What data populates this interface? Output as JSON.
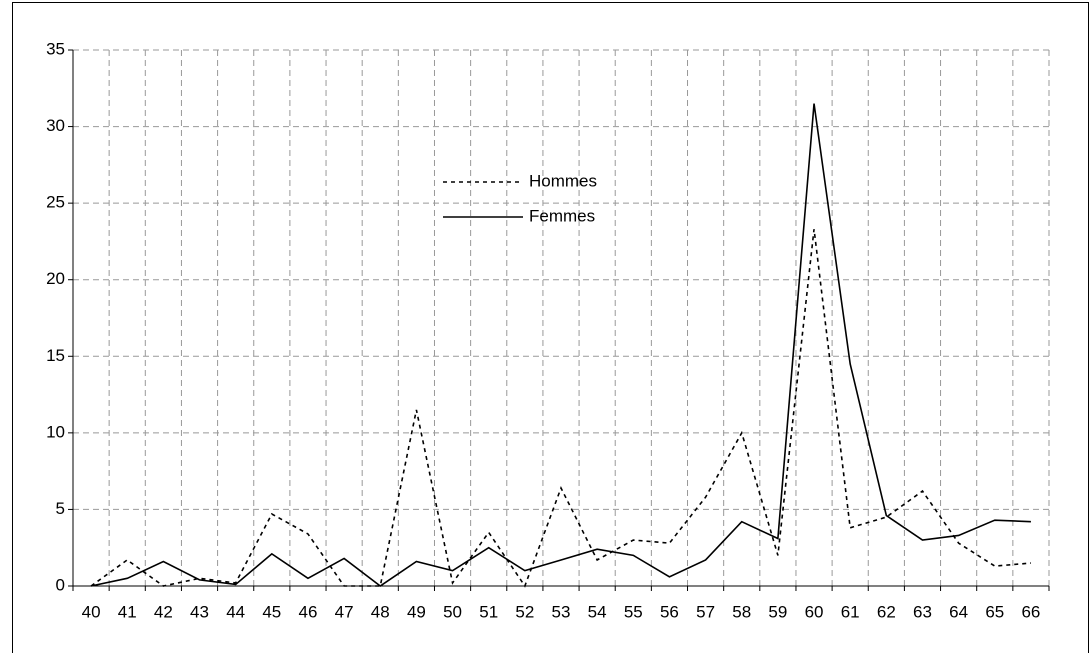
{
  "chart_data": {
    "type": "line",
    "categories": [
      "40",
      "41",
      "42",
      "43",
      "44",
      "45",
      "46",
      "47",
      "48",
      "49",
      "50",
      "51",
      "52",
      "53",
      "54",
      "55",
      "56",
      "57",
      "58",
      "59",
      "60",
      "61",
      "62",
      "63",
      "64",
      "65",
      "66"
    ],
    "series": [
      {
        "name": "Hommes",
        "color": "#000000",
        "style": "dashed",
        "values": [
          0,
          1.7,
          0,
          0.5,
          0.2,
          4.7,
          3.4,
          0,
          0,
          11.5,
          0.2,
          3.5,
          0,
          6.4,
          1.7,
          3,
          2.8,
          5.8,
          10,
          2,
          23.3,
          3.8,
          4.5,
          6.2,
          2.8,
          1.3,
          1.5
        ]
      },
      {
        "name": "Femmes",
        "color": "#000000",
        "style": "solid",
        "values": [
          0,
          0.5,
          1.6,
          0.4,
          0.1,
          2.1,
          0.5,
          1.8,
          0,
          1.6,
          1.0,
          2.5,
          1.0,
          1.7,
          2.4,
          2.0,
          0.6,
          1.7,
          4.2,
          3.1,
          31.5,
          14.5,
          4.6,
          3.0,
          3.3,
          4.3,
          4.2
        ]
      }
    ],
    "ylim": [
      0,
      35
    ],
    "yticks": [
      0,
      5,
      10,
      15,
      20,
      25,
      30,
      35
    ],
    "grid": true
  }
}
